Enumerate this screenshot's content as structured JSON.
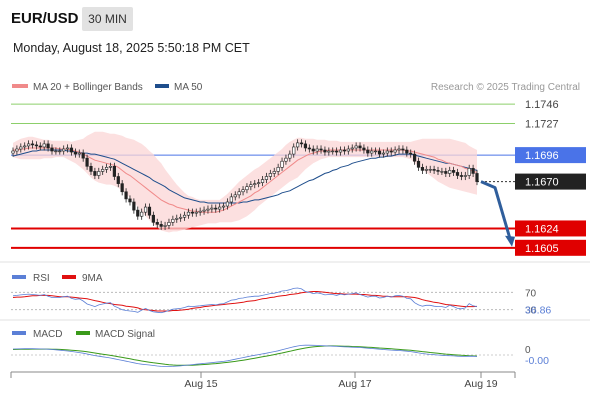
{
  "header": {
    "symbol": "EUR/USD",
    "timeframe": "30 MIN",
    "timestamp": "Monday, August 18, 2025 5:50:18 PM CET"
  },
  "legend": {
    "ma20_bb": "MA 20 + Bollinger Bands",
    "ma50": "MA 50",
    "credit": "Research © 2025 Trading Central"
  },
  "colors": {
    "ma20": "#f08a8a",
    "ma50": "#1f4e8c",
    "bands_fill": "#fbd6d6",
    "resistance": "#8ccf6a",
    "pivot": "#4a73e8",
    "support": "#e00000",
    "current_price": "#222222",
    "bull": "#ffffff",
    "bear": "#222222",
    "rsi": "#5b7fd6",
    "rsi_ma": "#e01010",
    "macd": "#5b7fd6",
    "macd_signal": "#3a9a1a",
    "arrow": "#2f5e9c"
  },
  "chart_data": [
    {
      "type": "candlestick",
      "title": "EUR/USD 30 MIN",
      "ylim": [
        1.1595,
        1.1755
      ],
      "x_ticks": [
        "Aug 15",
        "Aug 17",
        "Aug 19"
      ],
      "levels": [
        {
          "label": "1.1746",
          "value": 1.1746,
          "kind": "resistance",
          "color": "#8ccf6a"
        },
        {
          "label": "1.1727",
          "value": 1.1727,
          "kind": "resistance",
          "color": "#8ccf6a"
        },
        {
          "label": "1.1696",
          "value": 1.1696,
          "kind": "pivot",
          "color": "#4a73e8"
        },
        {
          "label": "1.1670",
          "value": 1.167,
          "kind": "current",
          "color": "#222222"
        },
        {
          "label": "1.1624",
          "value": 1.1624,
          "kind": "support",
          "color": "#e00000"
        },
        {
          "label": "1.1605",
          "value": 1.1605,
          "kind": "support",
          "color": "#e00000"
        }
      ],
      "close": [
        1.17,
        1.1702,
        1.1704,
        1.1705,
        1.1707,
        1.1706,
        1.1705,
        1.1704,
        1.1707,
        1.1703,
        1.17,
        1.17,
        1.17,
        1.1702,
        1.1703,
        1.1699,
        1.1697,
        1.1698,
        1.1693,
        1.1685,
        1.168,
        1.1676,
        1.168,
        1.1682,
        1.1684,
        1.1685,
        1.1675,
        1.1668,
        1.166,
        1.1653,
        1.165,
        1.1642,
        1.1636,
        1.164,
        1.1645,
        1.1637,
        1.163,
        1.1628,
        1.1626,
        1.1627,
        1.163,
        1.1633,
        1.1634,
        1.1635,
        1.1637,
        1.164,
        1.1639,
        1.164,
        1.1641,
        1.1642,
        1.1643,
        1.1644,
        1.1643,
        1.1645,
        1.1646,
        1.165,
        1.1655,
        1.1657,
        1.166,
        1.1662,
        1.1665,
        1.1667,
        1.1668,
        1.1669,
        1.1672,
        1.1675,
        1.1678,
        1.168,
        1.1684,
        1.169,
        1.1693,
        1.1697,
        1.1704,
        1.1708,
        1.1707,
        1.1703,
        1.1702,
        1.17,
        1.1702,
        1.1701,
        1.1699,
        1.17,
        1.17,
        1.1699,
        1.1701,
        1.17,
        1.1702,
        1.1703,
        1.1705,
        1.1703,
        1.1701,
        1.1698,
        1.17,
        1.17,
        1.1697,
        1.1698,
        1.17,
        1.1699,
        1.1701,
        1.1702,
        1.1701,
        1.1698,
        1.1697,
        1.169,
        1.1684,
        1.1681,
        1.1682,
        1.1682,
        1.1681,
        1.168,
        1.168,
        1.1678,
        1.1681,
        1.1679,
        1.1676,
        1.1675,
        1.1676,
        1.1683,
        1.1678,
        1.167
      ],
      "bollinger_upper": [
        1.1708,
        1.171,
        1.1712,
        1.1713,
        1.1714,
        1.1714,
        1.1713,
        1.1712,
        1.1711,
        1.1711,
        1.171,
        1.171,
        1.171,
        1.171,
        1.171,
        1.1709,
        1.171,
        1.1711,
        1.1712,
        1.1715,
        1.1717,
        1.1719,
        1.1719,
        1.1719,
        1.1718,
        1.1717,
        1.1717,
        1.1716,
        1.1715,
        1.1713,
        1.1712,
        1.1711,
        1.1709,
        1.1707,
        1.1704,
        1.17,
        1.1697,
        1.1692,
        1.1688,
        1.1682,
        1.1677,
        1.1672,
        1.1667,
        1.1663,
        1.1659,
        1.1656,
        1.1655,
        1.1653,
        1.1652,
        1.1652,
        1.1652,
        1.1652,
        1.1652,
        1.1652,
        1.1655,
        1.1658,
        1.1662,
        1.1666,
        1.167,
        1.1673,
        1.1676,
        1.1679,
        1.1682,
        1.1684,
        1.1687,
        1.169,
        1.1693,
        1.1696,
        1.1699,
        1.1702,
        1.1706,
        1.1709,
        1.1711,
        1.1713,
        1.1713,
        1.1712,
        1.1712,
        1.1712,
        1.1711,
        1.1711,
        1.1711,
        1.171,
        1.171,
        1.171,
        1.1709,
        1.1709,
        1.1709,
        1.1709,
        1.1709,
        1.1709,
        1.1709,
        1.1709,
        1.1709,
        1.1709,
        1.1709,
        1.1709,
        1.1709,
        1.1709,
        1.1709,
        1.1709,
        1.1709,
        1.1709,
        1.1709,
        1.171,
        1.1711,
        1.1712,
        1.1712,
        1.1712,
        1.1712,
        1.1712,
        1.1712,
        1.1712,
        1.1712,
        1.1711,
        1.171,
        1.1709,
        1.1708,
        1.1705,
        1.1703,
        1.1701
      ],
      "bollinger_lower": [
        1.1694,
        1.1693,
        1.1692,
        1.1692,
        1.1692,
        1.1692,
        1.1692,
        1.1692,
        1.1693,
        1.1693,
        1.1693,
        1.1694,
        1.1694,
        1.1694,
        1.1692,
        1.169,
        1.1688,
        1.1685,
        1.1682,
        1.1678,
        1.1674,
        1.1671,
        1.1669,
        1.1668,
        1.1667,
        1.1667,
        1.1666,
        1.1664,
        1.1661,
        1.1658,
        1.1654,
        1.165,
        1.1645,
        1.164,
        1.1636,
        1.1632,
        1.1628,
        1.1625,
        1.1622,
        1.1621,
        1.162,
        1.1621,
        1.1621,
        1.1622,
        1.1623,
        1.1624,
        1.1625,
        1.1626,
        1.1627,
        1.1628,
        1.1629,
        1.1629,
        1.1629,
        1.163,
        1.163,
        1.163,
        1.163,
        1.1631,
        1.1632,
        1.1634,
        1.1636,
        1.1639,
        1.1642,
        1.1646,
        1.1649,
        1.1652,
        1.1655,
        1.1658,
        1.1661,
        1.1664,
        1.1667,
        1.167,
        1.1672,
        1.1674,
        1.1678,
        1.1682,
        1.1685,
        1.1688,
        1.169,
        1.1692,
        1.1693,
        1.1694,
        1.1694,
        1.1694,
        1.1694,
        1.1694,
        1.1694,
        1.1694,
        1.1694,
        1.1694,
        1.1694,
        1.1694,
        1.1694,
        1.1694,
        1.1694,
        1.1694,
        1.1694,
        1.1694,
        1.1694,
        1.1694,
        1.1694,
        1.1693,
        1.1692,
        1.1688,
        1.1685,
        1.1682,
        1.1679,
        1.1676,
        1.1673,
        1.167,
        1.1668,
        1.1666,
        1.1664,
        1.1663,
        1.1662,
        1.1661,
        1.166,
        1.1659,
        1.1658,
        1.1657
      ],
      "ma20": [
        1.1701,
        1.1701,
        1.1702,
        1.1702,
        1.1703,
        1.1703,
        1.1703,
        1.1703,
        1.1703,
        1.1703,
        1.1703,
        1.1703,
        1.1702,
        1.1702,
        1.1702,
        1.1701,
        1.17,
        1.1699,
        1.1697,
        1.1695,
        1.1693,
        1.1691,
        1.169,
        1.1689,
        1.1688,
        1.1687,
        1.1686,
        1.1684,
        1.1681,
        1.1678,
        1.1676,
        1.1673,
        1.167,
        1.1667,
        1.1664,
        1.1661,
        1.1658,
        1.1655,
        1.1652,
        1.165,
        1.1648,
        1.1647,
        1.1645,
        1.1644,
        1.1643,
        1.1642,
        1.1641,
        1.1641,
        1.164,
        1.164,
        1.164,
        1.164,
        1.164,
        1.1641,
        1.1642,
        1.1644,
        1.1646,
        1.1648,
        1.165,
        1.1652,
        1.1654,
        1.1656,
        1.1659,
        1.1661,
        1.1664,
        1.1667,
        1.167,
        1.1673,
        1.1676,
        1.1679,
        1.1682,
        1.1685,
        1.1688,
        1.1691,
        1.1693,
        1.1695,
        1.1697,
        1.1698,
        1.1699,
        1.17,
        1.17,
        1.1701,
        1.1701,
        1.1701,
        1.1701,
        1.1701,
        1.1701,
        1.1701,
        1.1701,
        1.1701,
        1.1701,
        1.1701,
        1.1701,
        1.1701,
        1.1701,
        1.1701,
        1.1701,
        1.1701,
        1.1701,
        1.1701,
        1.1701,
        1.17,
        1.17,
        1.1699,
        1.1698,
        1.1697,
        1.1696,
        1.1695,
        1.1694,
        1.1692,
        1.1691,
        1.1689,
        1.1688,
        1.1687,
        1.1686,
        1.1685,
        1.1683,
        1.1682,
        1.168,
        1.1679
      ],
      "ma50": [
        1.1695,
        1.1696,
        1.1697,
        1.1698,
        1.1699,
        1.17,
        1.17,
        1.1701,
        1.1701,
        1.1701,
        1.1701,
        1.1701,
        1.1701,
        1.1701,
        1.17,
        1.17,
        1.1699,
        1.1699,
        1.1698,
        1.1698,
        1.1697,
        1.1697,
        1.1696,
        1.1695,
        1.1694,
        1.1693,
        1.1692,
        1.169,
        1.1688,
        1.1686,
        1.1684,
        1.1682,
        1.168,
        1.1678,
        1.1676,
        1.1674,
        1.1671,
        1.1669,
        1.1667,
        1.1665,
        1.1662,
        1.166,
        1.1658,
        1.1656,
        1.1654,
        1.1653,
        1.1652,
        1.1651,
        1.165,
        1.165,
        1.1649,
        1.1649,
        1.1649,
        1.1649,
        1.1649,
        1.1649,
        1.1649,
        1.1649,
        1.1649,
        1.165,
        1.165,
        1.1651,
        1.1652,
        1.1652,
        1.1653,
        1.1654,
        1.1655,
        1.1656,
        1.1657,
        1.1659,
        1.166,
        1.1661,
        1.1663,
        1.1665,
        1.1667,
        1.1669,
        1.1671,
        1.1672,
        1.1674,
        1.1676,
        1.1678,
        1.1679,
        1.1681,
        1.1682,
        1.1684,
        1.1685,
        1.1686,
        1.1688,
        1.1689,
        1.169,
        1.1691,
        1.1692,
        1.1693,
        1.1693,
        1.1694,
        1.1694,
        1.1695,
        1.1695,
        1.1696,
        1.1697,
        1.1697,
        1.1697,
        1.1697,
        1.1696,
        1.1695,
        1.1694,
        1.1693,
        1.1692,
        1.1691,
        1.169,
        1.1689,
        1.1688,
        1.1688,
        1.1687,
        1.1686,
        1.1685,
        1.1684,
        1.1683,
        1.1682,
        1.1681
      ]
    },
    {
      "type": "line",
      "title": "RSI",
      "series": [
        {
          "name": "RSI"
        },
        {
          "name": "9MA"
        }
      ],
      "level_labels": [
        "70",
        "30"
      ],
      "last_value_label": "36.86",
      "ylim": [
        0,
        100
      ],
      "rsi": [
        62,
        63,
        64,
        65,
        66,
        65,
        64,
        63,
        65,
        61,
        58,
        58,
        58,
        60,
        61,
        56,
        54,
        55,
        50,
        43,
        40,
        37,
        41,
        43,
        45,
        46,
        38,
        34,
        30,
        28,
        27,
        26,
        24,
        29,
        33,
        28,
        25,
        24,
        23,
        25,
        28,
        31,
        32,
        33,
        35,
        38,
        37,
        38,
        39,
        40,
        41,
        42,
        41,
        43,
        44,
        48,
        52,
        53,
        56,
        57,
        59,
        60,
        61,
        61,
        63,
        65,
        67,
        68,
        70,
        73,
        74,
        76,
        79,
        80,
        78,
        72,
        70,
        67,
        69,
        67,
        64,
        65,
        65,
        63,
        66,
        64,
        66,
        67,
        69,
        65,
        62,
        59,
        61,
        61,
        57,
        58,
        61,
        59,
        62,
        63,
        61,
        56,
        55,
        46,
        41,
        38,
        40,
        40,
        38,
        37,
        37,
        35,
        40,
        37,
        33,
        32,
        34,
        44,
        39,
        36.86
      ],
      "ma9": [
        58,
        59,
        59,
        60,
        61,
        62,
        62,
        63,
        63,
        63,
        62,
        61,
        60,
        60,
        60,
        59,
        58,
        57,
        56,
        55,
        53,
        51,
        49,
        47,
        45,
        44,
        42,
        41,
        40,
        38,
        37,
        36,
        34,
        31,
        30,
        29,
        28,
        27,
        27,
        27,
        27,
        28,
        28,
        29,
        30,
        31,
        33,
        34,
        35,
        37,
        38,
        39,
        40,
        41,
        42,
        43,
        44,
        45,
        46,
        47,
        49,
        50,
        51,
        53,
        55,
        56,
        58,
        59,
        61,
        62,
        63,
        65,
        66,
        67,
        69,
        70,
        71,
        72,
        72,
        71,
        70,
        69,
        68,
        67,
        67,
        66,
        66,
        66,
        66,
        65,
        65,
        64,
        63,
        63,
        62,
        61,
        61,
        60,
        60,
        60,
        60,
        60,
        59,
        58,
        56,
        53,
        51,
        49,
        47,
        46,
        44,
        42,
        41,
        40,
        39,
        38,
        37,
        37,
        37,
        37.5
      ],
      "color_rsi": "#5b7fd6",
      "color_ma": "#e01010"
    },
    {
      "type": "line",
      "title": "MACD",
      "series": [
        {
          "name": "MACD"
        },
        {
          "name": "MACD Signal"
        }
      ],
      "zero_label": "0",
      "last_value_label": "-0.00",
      "macd": [
        0.0006,
        0.00061,
        0.00062,
        0.00063,
        0.00063,
        0.00063,
        0.00062,
        0.00061,
        0.0006,
        0.00058,
        0.00055,
        0.00052,
        0.00048,
        0.00044,
        0.0004,
        0.00035,
        0.0003,
        0.00024,
        0.00018,
        0.0001,
        2e-05,
        -6e-05,
        -0.00012,
        -0.00018,
        -0.00024,
        -0.0003,
        -0.00038,
        -0.00046,
        -0.00054,
        -0.00062,
        -0.0007,
        -0.00078,
        -0.00086,
        -0.00092,
        -0.00096,
        -0.001,
        -0.00105,
        -0.0011,
        -0.00114,
        -0.00116,
        -0.00116,
        -0.00114,
        -0.00111,
        -0.00108,
        -0.00104,
        -0.001,
        -0.00096,
        -0.00092,
        -0.00088,
        -0.00084,
        -0.0008,
        -0.00076,
        -0.00072,
        -0.00068,
        -0.00064,
        -0.00058,
        -0.0005,
        -0.00042,
        -0.00034,
        -0.00026,
        -0.00018,
        -0.0001,
        -3e-05,
        4e-05,
        0.00011,
        0.00018,
        0.00026,
        0.00034,
        0.00042,
        0.00052,
        0.00062,
        0.00072,
        0.00082,
        0.0009,
        0.00096,
        0.00098,
        0.00098,
        0.00097,
        0.00096,
        0.00094,
        0.00092,
        0.0009,
        0.00088,
        0.00086,
        0.00084,
        0.00082,
        0.0008,
        0.00078,
        0.00077,
        0.00075,
        0.00072,
        0.00068,
        0.00065,
        0.00062,
        0.00058,
        0.00055,
        0.00052,
        0.00049,
        0.00047,
        0.00045,
        0.00042,
        0.00038,
        0.00034,
        0.00028,
        0.00021,
        0.00015,
        0.0001,
        6e-05,
        3e-05,
        0.0,
        -3e-05,
        -6e-05,
        -7e-05,
        -9e-05,
        -0.00012,
        -0.00014,
        -0.00014,
        -0.00012,
        -0.00013,
        -0.00015
      ],
      "signal": [
        0.00055,
        0.00056,
        0.00057,
        0.00058,
        0.00058,
        0.00059,
        0.00059,
        0.00059,
        0.00059,
        0.00059,
        0.00058,
        0.00057,
        0.00056,
        0.00054,
        0.00051,
        0.00048,
        0.00045,
        0.00041,
        0.00037,
        0.00032,
        0.00026,
        0.0002,
        0.00014,
        8e-05,
        2e-05,
        -4e-05,
        -0.0001,
        -0.00017,
        -0.00024,
        -0.00031,
        -0.00038,
        -0.00046,
        -0.00053,
        -0.0006,
        -0.00066,
        -0.00072,
        -0.00078,
        -0.00083,
        -0.00088,
        -0.00093,
        -0.00097,
        -0.001,
        -0.00102,
        -0.00103,
        -0.00103,
        -0.00103,
        -0.00102,
        -0.001,
        -0.00098,
        -0.00095,
        -0.00092,
        -0.00089,
        -0.00086,
        -0.00082,
        -0.00078,
        -0.00074,
        -0.00069,
        -0.00064,
        -0.00058,
        -0.00052,
        -0.00046,
        -0.00039,
        -0.00032,
        -0.00025,
        -0.00018,
        -0.00011,
        -4e-05,
        4e-05,
        0.00012,
        0.0002,
        0.00029,
        0.00037,
        0.00046,
        0.00055,
        0.00063,
        0.0007,
        0.00076,
        0.00081,
        0.00085,
        0.00088,
        0.0009,
        0.00091,
        0.00091,
        0.0009,
        0.00089,
        0.00088,
        0.00087,
        0.00085,
        0.00084,
        0.00082,
        0.0008,
        0.00078,
        0.00076,
        0.00073,
        0.0007,
        0.00068,
        0.00065,
        0.00062,
        0.00059,
        0.00056,
        0.00053,
        0.0005,
        0.00047,
        0.00043,
        0.00039,
        0.00034,
        0.0003,
        0.00025,
        0.00021,
        0.00017,
        0.00013,
        9e-05,
        6e-05,
        3e-05,
        0.0,
        -3e-05,
        -5e-05,
        -7e-05,
        -9e-05,
        -0.00011
      ],
      "color_macd": "#5b7fd6",
      "color_signal": "#3a9a1a"
    }
  ]
}
